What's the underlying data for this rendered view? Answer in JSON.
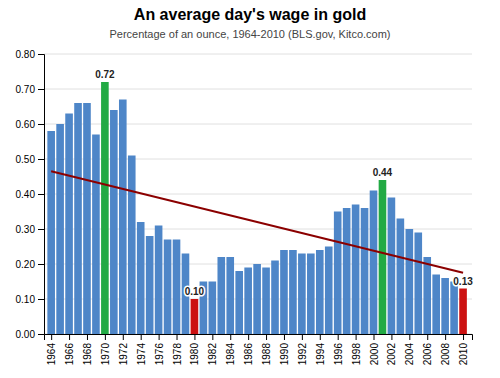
{
  "chart_data": {
    "type": "bar",
    "title": "An average day's wage in gold",
    "subtitle": "Percentage of an ounce, 1964-2010 (BLS.gov, Kitco.com)",
    "x": [
      1964,
      1965,
      1966,
      1967,
      1968,
      1969,
      1970,
      1971,
      1972,
      1973,
      1974,
      1975,
      1976,
      1977,
      1978,
      1979,
      1980,
      1981,
      1982,
      1983,
      1984,
      1985,
      1986,
      1987,
      1988,
      1989,
      1990,
      1991,
      1992,
      1993,
      1994,
      1995,
      1996,
      1997,
      1998,
      1999,
      2000,
      2001,
      2002,
      2003,
      2004,
      2005,
      2006,
      2007,
      2008,
      2009,
      2010
    ],
    "series": [
      {
        "type": "bar",
        "values": [
          0.58,
          0.6,
          0.63,
          0.66,
          0.66,
          0.57,
          0.72,
          0.64,
          0.67,
          0.51,
          0.32,
          0.28,
          0.31,
          0.27,
          0.27,
          0.23,
          0.1,
          0.15,
          0.15,
          0.22,
          0.22,
          0.18,
          0.19,
          0.2,
          0.19,
          0.21,
          0.24,
          0.24,
          0.23,
          0.23,
          0.24,
          0.25,
          0.35,
          0.36,
          0.37,
          0.36,
          0.41,
          0.44,
          0.39,
          0.33,
          0.3,
          0.29,
          0.22,
          0.17,
          0.16,
          0.15,
          0.13
        ],
        "value_labels": [
          null,
          null,
          null,
          null,
          null,
          null,
          "0.72",
          null,
          null,
          null,
          null,
          null,
          null,
          null,
          null,
          null,
          "0.10",
          null,
          null,
          null,
          null,
          null,
          null,
          null,
          null,
          null,
          null,
          null,
          null,
          null,
          null,
          null,
          null,
          null,
          null,
          null,
          null,
          "0.44",
          null,
          null,
          null,
          null,
          null,
          null,
          null,
          null,
          "0.13"
        ],
        "colors": [
          "#4E86C8",
          "#4E86C8",
          "#4E86C8",
          "#4E86C8",
          "#4E86C8",
          "#4E86C8",
          "#22AA44",
          "#4E86C8",
          "#4E86C8",
          "#4E86C8",
          "#4E86C8",
          "#4E86C8",
          "#4E86C8",
          "#4E86C8",
          "#4E86C8",
          "#4E86C8",
          "#CC1111",
          "#4E86C8",
          "#4E86C8",
          "#4E86C8",
          "#4E86C8",
          "#4E86C8",
          "#4E86C8",
          "#4E86C8",
          "#4E86C8",
          "#4E86C8",
          "#4E86C8",
          "#4E86C8",
          "#4E86C8",
          "#4E86C8",
          "#4E86C8",
          "#4E86C8",
          "#4E86C8",
          "#4E86C8",
          "#4E86C8",
          "#4E86C8",
          "#4E86C8",
          "#22AA44",
          "#4E86C8",
          "#4E86C8",
          "#4E86C8",
          "#4E86C8",
          "#4E86C8",
          "#4E86C8",
          "#4E86C8",
          "#4E86C8",
          "#CC1111"
        ]
      },
      {
        "type": "line",
        "x": [
          1964,
          2010
        ],
        "values": [
          0.465,
          0.175
        ],
        "color": "#8B0000"
      }
    ],
    "data_labels": true,
    "xlim": [
      1963.2,
      2011.0
    ],
    "xticks": [
      1964,
      1966,
      1968,
      1970,
      1972,
      1974,
      1976,
      1978,
      1980,
      1982,
      1984,
      1986,
      1988,
      1990,
      1992,
      1994,
      1996,
      1998,
      2000,
      2002,
      2004,
      2006,
      2008,
      2010
    ],
    "ylim": [
      0.0,
      0.8
    ],
    "yticks": [
      {
        "value": 0.0,
        "label": "0.00"
      },
      {
        "value": 0.1,
        "label": "0.10"
      },
      {
        "value": 0.2,
        "label": "0.20"
      },
      {
        "value": 0.3,
        "label": "0.30"
      },
      {
        "value": 0.4,
        "label": "0.40"
      },
      {
        "value": 0.5,
        "label": "0.50"
      },
      {
        "value": 0.6,
        "label": "0.60"
      },
      {
        "value": 0.7,
        "label": "0.70"
      },
      {
        "value": 0.8,
        "label": "0.80"
      }
    ],
    "grid": true
  }
}
